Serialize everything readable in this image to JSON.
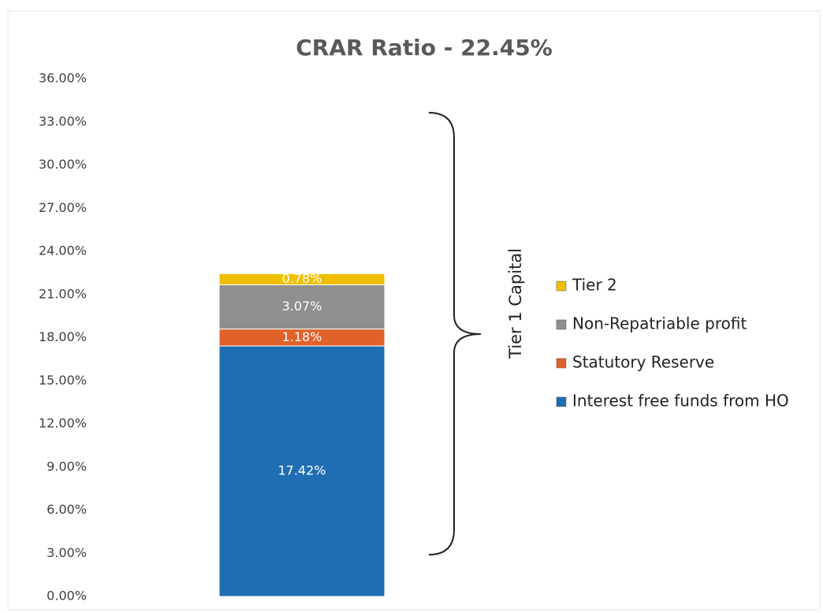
{
  "chart_data": {
    "type": "stacked_bar",
    "title": "CRAR Ratio - 22.45%",
    "categories": [
      null
    ],
    "series": [
      {
        "name": "Interest free funds from HO",
        "color": "#1f6db3",
        "values": [
          17.42
        ],
        "value_labels": [
          "17.42%"
        ]
      },
      {
        "name": "Statutory Reserve",
        "color": "#e0622a",
        "values": [
          1.18
        ],
        "value_labels": [
          "1.18%"
        ]
      },
      {
        "name": "Non-Repatriable profit",
        "color": "#8f8f8f",
        "values": [
          3.07
        ],
        "value_labels": [
          "3.07%"
        ]
      },
      {
        "name": "Tier 2",
        "color": "#f0c000",
        "values": [
          0.78
        ],
        "value_labels": [
          "0.78%"
        ]
      }
    ],
    "ylim": [
      0,
      36
    ],
    "yticks": [
      {
        "value": 0,
        "label": "0.00%"
      },
      {
        "value": 3,
        "label": "3.00%"
      },
      {
        "value": 6,
        "label": "6.00%"
      },
      {
        "value": 9,
        "label": "9.00%"
      },
      {
        "value": 12,
        "label": "12.00%"
      },
      {
        "value": 15,
        "label": "15.00%"
      },
      {
        "value": 18,
        "label": "18.00%"
      },
      {
        "value": 21,
        "label": "21.00%"
      },
      {
        "value": 24,
        "label": "24.00%"
      },
      {
        "value": 27,
        "label": "27.00%"
      },
      {
        "value": 30,
        "label": "30.00%"
      },
      {
        "value": 33,
        "label": "33.00%"
      },
      {
        "value": 36,
        "label": "36.00%"
      }
    ],
    "grid": false,
    "legend": "right",
    "annotation": "Tier 1 Capital"
  }
}
